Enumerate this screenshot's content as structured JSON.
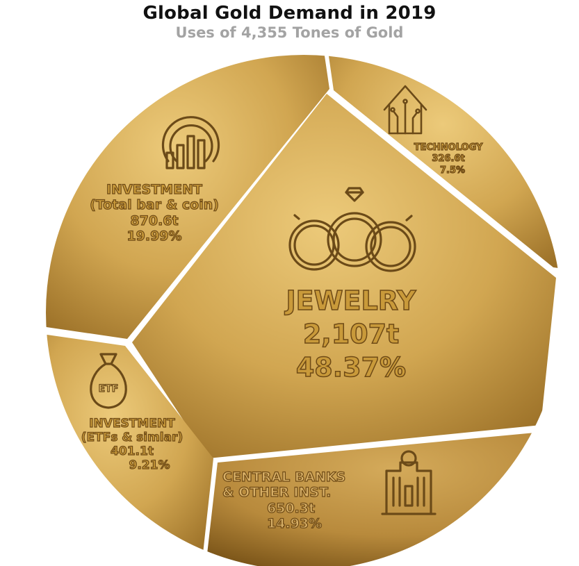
{
  "chart_data": {
    "type": "pie",
    "title": "Global Gold Demand in 2019",
    "subtitle": "Uses of 4,355 Tones of Gold",
    "slices": [
      {
        "name": "JEWELRY",
        "value_text": "2,107t",
        "percent_text": "48.37%",
        "value": 2107,
        "percent": 48.37,
        "icon": "rings-icon"
      },
      {
        "name": "INVESTMENT",
        "sub": "(Total bar & coin)",
        "value_text": "870.6t",
        "percent_text": "19.99%",
        "value": 870.6,
        "percent": 19.99,
        "icon": "chart-growth-icon"
      },
      {
        "name": "CENTRAL BANKS",
        "sub": "& OTHER INST.",
        "value_text": "650.3t",
        "percent_text": "14.93%",
        "value": 650.3,
        "percent": 14.93,
        "icon": "bank-building-icon"
      },
      {
        "name": "INVESTMENT",
        "sub": "(ETFs & simlar)",
        "value_text": "401.1t",
        "percent_text": "9.21%",
        "value": 401.1,
        "percent": 9.21,
        "icon": "money-bag-icon",
        "icon_text": "ETF"
      },
      {
        "name": "TECHNOLOGY",
        "value_text": "326.6t",
        "percent_text": "7.5%",
        "value": 326.6,
        "percent": 7.5,
        "icon": "circuit-house-icon"
      }
    ],
    "colors": {
      "gold_light": "#e6c270",
      "gold_mid": "#c99a3a",
      "gold_dark": "#8a6320",
      "outline": "#6b4a18"
    }
  }
}
